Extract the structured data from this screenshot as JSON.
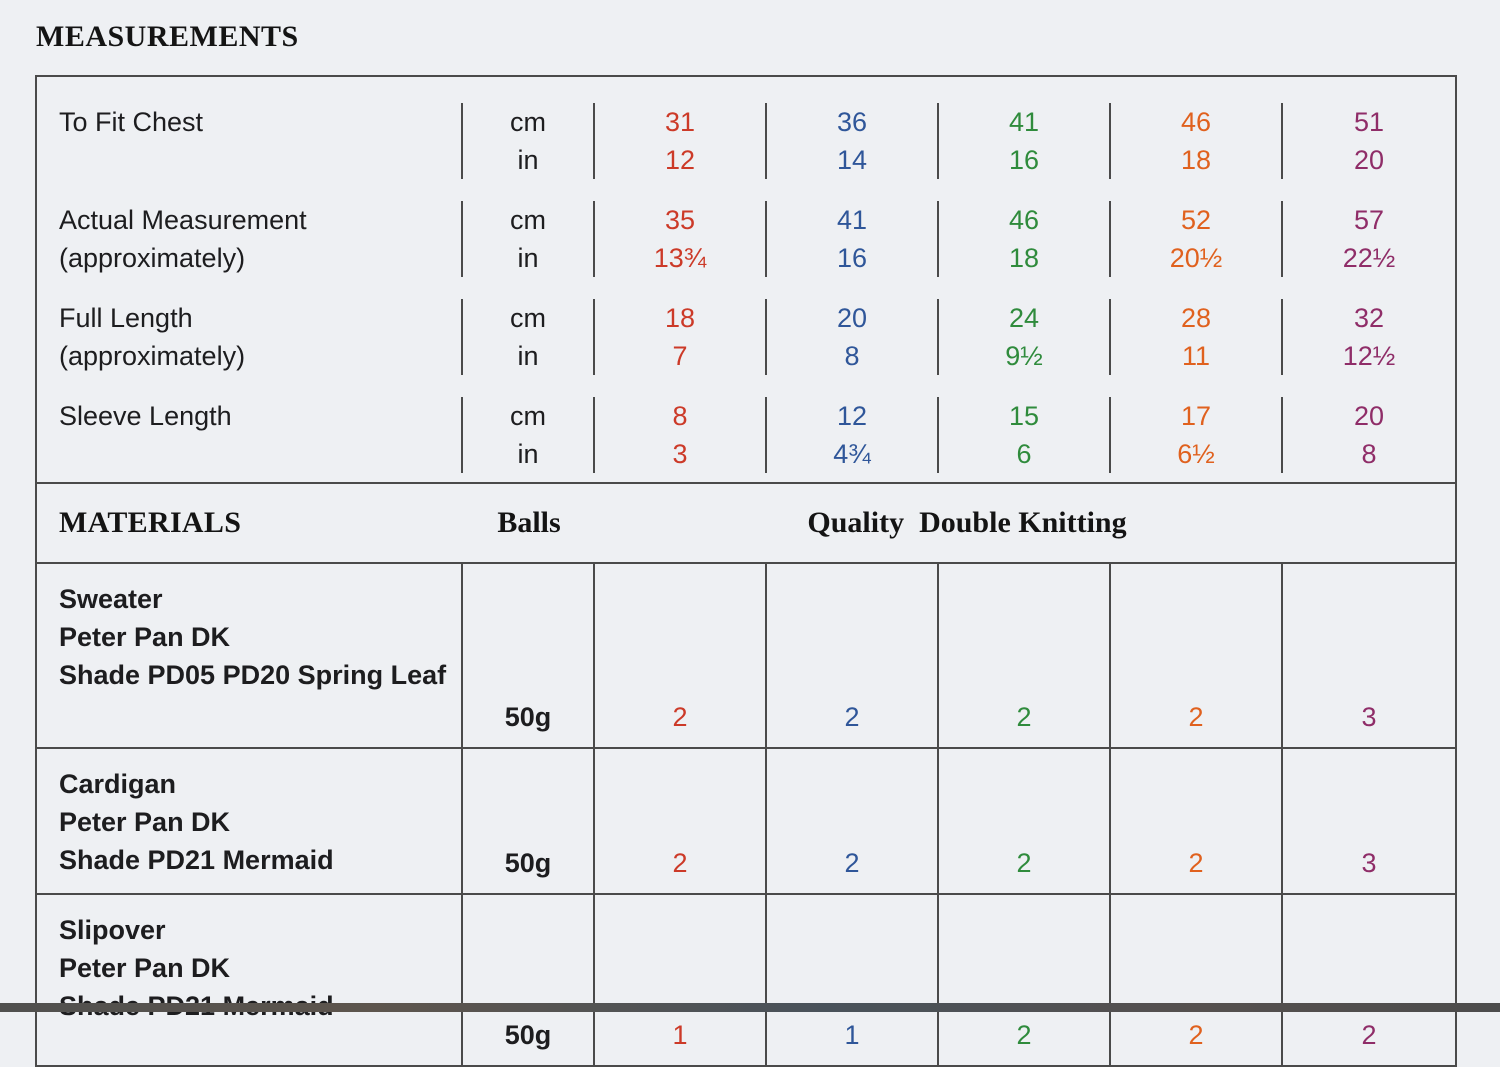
{
  "page": {
    "title": "MEASUREMENTS"
  },
  "colors": {
    "sizes": [
      "#cc3a28",
      "#2f5699",
      "#2f8b3c",
      "#e0611e",
      "#8f2d68"
    ],
    "border": "#4a4a4a",
    "background": "#eef0f3"
  },
  "measurements": {
    "units": {
      "cm": "cm",
      "in": "in"
    },
    "rows": [
      {
        "label": "To Fit Chest",
        "label2": "",
        "cm": [
          "31",
          "36",
          "41",
          "46",
          "51"
        ],
        "in": [
          "12",
          "14",
          "16",
          "18",
          "20"
        ]
      },
      {
        "label": "Actual Measurement",
        "label2": "(approximately)",
        "cm": [
          "35",
          "41",
          "46",
          "52",
          "57"
        ],
        "in": [
          "13¾",
          "16",
          "18",
          "20½",
          "22½"
        ]
      },
      {
        "label": "Full Length",
        "label2": "(approximately)",
        "cm": [
          "18",
          "20",
          "24",
          "28",
          "32"
        ],
        "in": [
          "7",
          "8",
          "9½",
          "11",
          "12½"
        ]
      },
      {
        "label": "Sleeve Length",
        "label2": "",
        "cm": [
          "8",
          "12",
          "15",
          "17",
          "20"
        ],
        "in": [
          "3",
          "4¾",
          "6",
          "6½",
          "8"
        ]
      }
    ]
  },
  "materials": {
    "title": "MATERIALS",
    "balls_label": "Balls",
    "quality_label": "Quality  Double Knitting",
    "rows": [
      {
        "name": "Sweater",
        "yarn": "Peter Pan DK",
        "shade": "Shade PD05 PD20 Spring Leaf",
        "weight": "50g",
        "values": [
          "2",
          "2",
          "2",
          "2",
          "3"
        ]
      },
      {
        "name": "Cardigan",
        "yarn": "Peter Pan DK",
        "shade": "Shade PD21 Mermaid",
        "weight": "50g",
        "values": [
          "2",
          "2",
          "2",
          "2",
          "3"
        ]
      },
      {
        "name": "Slipover",
        "yarn": "Peter Pan DK",
        "shade": "Shade PD21 Mermaid",
        "weight": "50g",
        "values": [
          "1",
          "1",
          "2",
          "2",
          "2"
        ]
      }
    ]
  }
}
